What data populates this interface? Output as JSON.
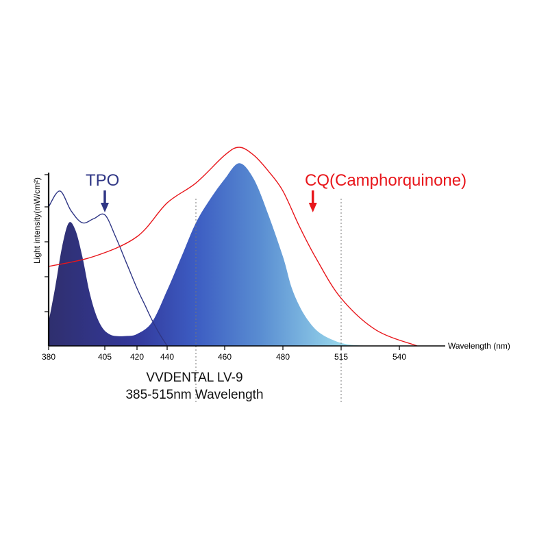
{
  "chart_data": {
    "type": "area",
    "xlabel": "Wavelength (nm)",
    "ylabel": "Light intensity(mW/cm²)",
    "x_ticks": [
      "380",
      "405",
      "420",
      "440",
      "460",
      "480",
      "515",
      "540"
    ],
    "xlim": [
      380,
      550
    ],
    "reference_lines_x": [
      450,
      515
    ],
    "series": [
      {
        "name": "TPO",
        "color": "#2f3685",
        "x": [
          380,
          385,
          390,
          395,
          400,
          405,
          410,
          415,
          420,
          425,
          430,
          435,
          440
        ],
        "y": [
          0.7,
          0.78,
          0.68,
          0.62,
          0.64,
          0.66,
          0.55,
          0.42,
          0.29,
          0.21,
          0.13,
          0.06,
          0.0
        ]
      },
      {
        "name": "CQ(Camphorquinone)",
        "color": "#e8161b",
        "x": [
          380,
          400,
          420,
          440,
          450,
          460,
          465,
          470,
          475,
          480,
          490,
          500,
          515,
          530,
          545
        ],
        "y": [
          0.4,
          0.45,
          0.55,
          0.72,
          0.82,
          0.96,
          1.0,
          0.96,
          0.88,
          0.78,
          0.6,
          0.44,
          0.24,
          0.08,
          0.0
        ]
      },
      {
        "name": "",
        "fill": "gradient",
        "x": [
          380,
          383,
          386,
          389,
          392,
          395,
          398,
          401,
          404,
          407,
          410,
          415,
          420,
          430,
          440,
          445,
          450,
          455,
          460,
          465,
          470,
          475,
          480,
          485,
          490,
          495,
          500,
          505,
          510,
          515,
          520,
          530,
          540
        ],
        "y": [
          0.12,
          0.3,
          0.5,
          0.62,
          0.58,
          0.45,
          0.28,
          0.16,
          0.09,
          0.06,
          0.05,
          0.05,
          0.06,
          0.12,
          0.28,
          0.45,
          0.62,
          0.74,
          0.84,
          0.92,
          0.84,
          0.66,
          0.45,
          0.3,
          0.2,
          0.13,
          0.08,
          0.05,
          0.03,
          0.015,
          0.005,
          0.0,
          0.0
        ]
      }
    ],
    "annotations": {
      "tpo": "TPO",
      "cq": "CQ(Camphorquinone)"
    },
    "title_line1": "VVDENTAL LV-9",
    "title_line2": "385-515nm Wavelength",
    "arrow_tpo_x": 405,
    "arrow_cq_x": 498
  }
}
